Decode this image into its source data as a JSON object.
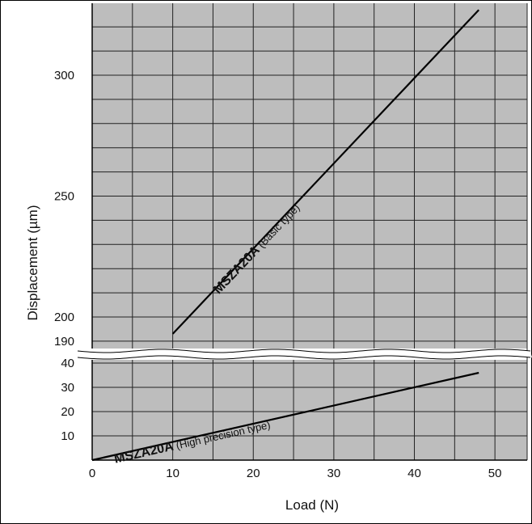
{
  "chart_data": {
    "type": "line",
    "title": "",
    "xlabel": "Load (N)",
    "ylabel": "Displacement (µm)",
    "xlim": [
      0,
      54
    ],
    "x_ticks": [
      "0",
      "10",
      "20",
      "30",
      "40",
      "50"
    ],
    "upper_panel": {
      "ylim": [
        190,
        330
      ],
      "y_ticks": [
        "190",
        "200",
        "250",
        "300"
      ]
    },
    "lower_panel": {
      "ylim": [
        0,
        45
      ],
      "y_ticks": [
        "10",
        "20",
        "30",
        "40"
      ]
    },
    "axis_break": "wavy break between 40 and 190",
    "grid": true,
    "series": [
      {
        "panel": "upper",
        "label_bold": "MSZA20A",
        "label_note": "(Basic type)",
        "x": [
          10,
          48
        ],
        "y": [
          193,
          327
        ]
      },
      {
        "panel": "lower",
        "label_bold": "MSZA20A",
        "label_note": "(High precision type)",
        "x": [
          0,
          48
        ],
        "y": [
          0,
          36
        ]
      }
    ],
    "colors": {
      "grid": "#222222",
      "plot_bg": "#bdbdbd",
      "line": "#000000"
    }
  }
}
